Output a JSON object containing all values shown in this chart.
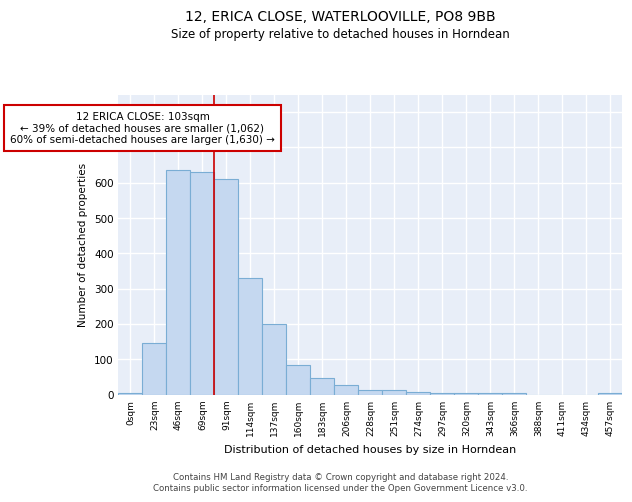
{
  "title1": "12, ERICA CLOSE, WATERLOOVILLE, PO8 9BB",
  "title2": "Size of property relative to detached houses in Horndean",
  "xlabel": "Distribution of detached houses by size in Horndean",
  "ylabel": "Number of detached properties",
  "categories": [
    "0sqm",
    "23sqm",
    "46sqm",
    "69sqm",
    "91sqm",
    "114sqm",
    "137sqm",
    "160sqm",
    "183sqm",
    "206sqm",
    "228sqm",
    "251sqm",
    "274sqm",
    "297sqm",
    "320sqm",
    "343sqm",
    "366sqm",
    "388sqm",
    "411sqm",
    "434sqm",
    "457sqm"
  ],
  "values": [
    5,
    145,
    635,
    630,
    610,
    330,
    200,
    85,
    48,
    27,
    12,
    14,
    8,
    4,
    4,
    4,
    3,
    0,
    0,
    0,
    5
  ],
  "bar_color": "#c5d8f0",
  "bar_edge_color": "#7aadd4",
  "ylim": [
    0,
    850
  ],
  "yticks": [
    0,
    100,
    200,
    300,
    400,
    500,
    600,
    700,
    800
  ],
  "background_color": "#e8eef8",
  "annotation_text": "12 ERICA CLOSE: 103sqm\n← 39% of detached houses are smaller (1,062)\n60% of semi-detached houses are larger (1,630) →",
  "annotation_box_color": "#ffffff",
  "annotation_border_color": "#cc0000",
  "footer_text": "Contains HM Land Registry data © Crown copyright and database right 2024.\nContains public sector information licensed under the Open Government Licence v3.0.",
  "marker_bar_index": 4,
  "marker_color": "#cc0000"
}
